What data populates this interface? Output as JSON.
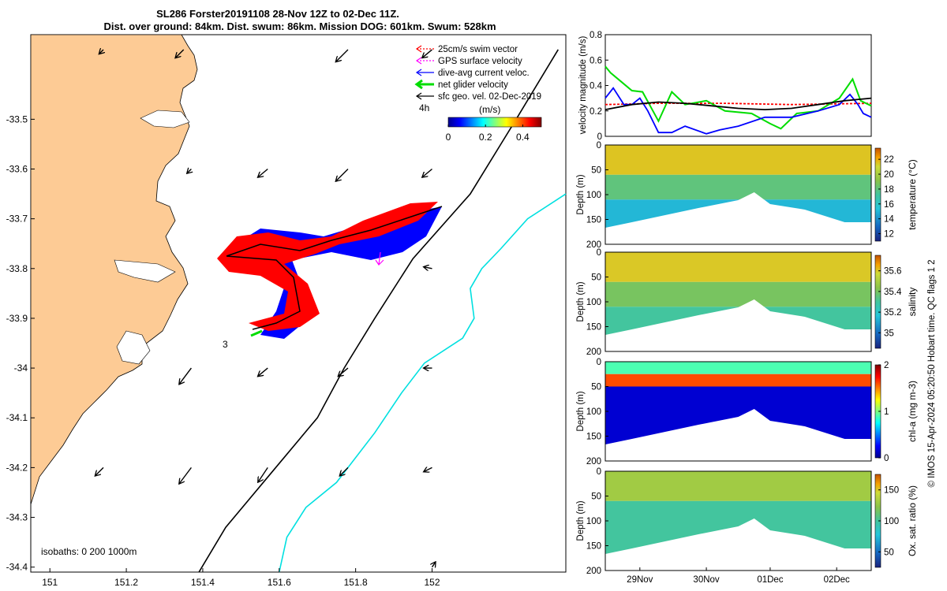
{
  "title": {
    "line1": "SL286 Forster20191108 28-Nov 12Z to 02-Dec 11Z.",
    "line2": "Dist. over ground: 84km. Dist. swum: 86km. Mission DOG: 601km. Swum: 528km"
  },
  "credit": "© IMOS 15-Apr-2024 05:20:50 Hobart time. QC flags 1  2",
  "chart_data": [
    {
      "type": "map",
      "xlim": [
        150.95,
        152.35
      ],
      "ylim": [
        -34.41,
        -33.33
      ],
      "xticks": [
        151,
        151.2,
        151.4,
        151.6,
        151.8,
        152
      ],
      "xtick_labels": [
        "151",
        "151.2",
        "151.4",
        "151.6",
        "151.8",
        "152"
      ],
      "yticks": [
        -33.5,
        -33.6,
        -33.7,
        -33.8,
        -33.9,
        -34,
        -34.1,
        -34.2,
        -34.3,
        -34.4
      ],
      "ytick_labels": [
        "-33.5",
        "-33.6",
        "-33.7",
        "-33.8",
        "-33.9",
        "-34",
        "-34.1",
        "-34.2",
        "-34.3",
        "-34.4"
      ],
      "legend": {
        "placement": "top-right",
        "entries": [
          {
            "label": "25cm/s swim vector",
            "color": "#ff0000",
            "style": "dotted-arrow"
          },
          {
            "label": "GPS surface velocity",
            "color": "#ff00ff",
            "style": "dotted-arrow"
          },
          {
            "label": "dive-avg current veloc.",
            "color": "#0000ff",
            "style": "arrow"
          },
          {
            "label": "net glider velocity",
            "color": "#00dd00",
            "style": "thick-arrow"
          },
          {
            "label": "sfc geo. vel. 02-Dec-2019",
            "color": "#000000",
            "style": "arrow"
          }
        ]
      },
      "colorbar": {
        "label": "(m/s)",
        "ticks": [
          0,
          0.2,
          0.4
        ],
        "tick_labels": [
          "0",
          "0.2",
          "0.4"
        ],
        "range": [
          0,
          0.5
        ]
      },
      "annotations": [
        {
          "text": "4h",
          "lon": 151.84,
          "lat": -33.44
        },
        {
          "text": "3",
          "lon": 151.38,
          "lat": -33.985
        },
        {
          "text": "isobaths: 0   200  1000m",
          "placement": "bottom-left"
        }
      ],
      "isobaths": [
        {
          "depth": 200,
          "color": "#000000",
          "points": [
            [
              152.33,
              -33.36
            ],
            [
              152.22,
              -33.5
            ],
            [
              152.1,
              -33.65
            ],
            [
              151.95,
              -33.78
            ],
            [
              151.85,
              -33.9
            ],
            [
              151.77,
              -34.0
            ],
            [
              151.7,
              -34.1
            ],
            [
              151.58,
              -34.21
            ],
            [
              151.46,
              -34.32
            ],
            [
              151.39,
              -34.41
            ]
          ]
        },
        {
          "depth": 1000,
          "color": "#00e0e0",
          "points": [
            [
              152.35,
              -33.65
            ],
            [
              152.25,
              -33.7
            ],
            [
              152.18,
              -33.76
            ],
            [
              152.13,
              -33.8
            ],
            [
              152.1,
              -33.84
            ],
            [
              152.11,
              -33.9
            ],
            [
              152.08,
              -33.94
            ],
            [
              151.98,
              -33.99
            ],
            [
              151.92,
              -34.05
            ],
            [
              151.85,
              -34.13
            ],
            [
              151.75,
              -34.23
            ],
            [
              151.67,
              -34.28
            ],
            [
              151.62,
              -34.34
            ],
            [
              151.6,
              -34.41
            ]
          ]
        }
      ],
      "glider_track": [
        [
          151.38,
          -33.81
        ],
        [
          151.44,
          -33.805
        ],
        [
          151.52,
          -33.805
        ],
        [
          151.58,
          -33.79
        ],
        [
          151.66,
          -33.775
        ],
        [
          151.74,
          -33.758
        ],
        [
          151.82,
          -33.74
        ],
        [
          151.9,
          -33.72
        ],
        [
          151.55,
          -33.81
        ],
        [
          151.5,
          -33.845
        ],
        [
          151.52,
          -33.88
        ],
        [
          151.55,
          -33.9
        ],
        [
          151.53,
          -33.93
        ],
        [
          151.47,
          -33.945
        ],
        [
          151.43,
          -33.95
        ]
      ],
      "current_vectors": [
        {
          "lon": 151.14,
          "lat": -33.36,
          "u": -0.05,
          "v": -0.05
        },
        {
          "lon": 151.35,
          "lat": -33.36,
          "u": -0.1,
          "v": -0.1
        },
        {
          "lon": 151.78,
          "lat": -33.36,
          "u": -0.15,
          "v": -0.15
        },
        {
          "lon": 152.0,
          "lat": -33.36,
          "u": -0.12,
          "v": -0.1
        },
        {
          "lon": 151.37,
          "lat": -33.6,
          "u": -0.05,
          "v": -0.05
        },
        {
          "lon": 151.57,
          "lat": -33.6,
          "u": -0.12,
          "v": -0.1
        },
        {
          "lon": 151.78,
          "lat": -33.6,
          "u": -0.15,
          "v": -0.15
        },
        {
          "lon": 152.0,
          "lat": -33.6,
          "u": -0.12,
          "v": -0.1
        },
        {
          "lon": 151.57,
          "lat": -33.8,
          "u": -0.06,
          "v": -0.05
        },
        {
          "lon": 152.0,
          "lat": -33.8,
          "u": -0.1,
          "v": 0.02
        },
        {
          "lon": 151.37,
          "lat": -34.0,
          "u": -0.15,
          "v": -0.2
        },
        {
          "lon": 151.57,
          "lat": -34.0,
          "u": -0.12,
          "v": -0.1
        },
        {
          "lon": 151.78,
          "lat": -34.0,
          "u": -0.12,
          "v": -0.1
        },
        {
          "lon": 152.0,
          "lat": -34.0,
          "u": -0.1,
          "v": 0.0
        },
        {
          "lon": 151.14,
          "lat": -34.2,
          "u": -0.1,
          "v": -0.1
        },
        {
          "lon": 151.37,
          "lat": -34.2,
          "u": -0.15,
          "v": -0.2
        },
        {
          "lon": 151.57,
          "lat": -34.2,
          "u": -0.12,
          "v": -0.18
        },
        {
          "lon": 151.78,
          "lat": -34.2,
          "u": -0.1,
          "v": -0.1
        },
        {
          "lon": 152.0,
          "lat": -34.2,
          "u": -0.1,
          "v": -0.05
        },
        {
          "lon": 152.0,
          "lat": -34.4,
          "u": 0.04,
          "v": 0.06
        }
      ]
    },
    {
      "type": "line",
      "ylabel": "velocity magnitude (m/s)",
      "ylim": [
        0,
        0.8
      ],
      "yticks": [
        0,
        0.2,
        0.4,
        0.6,
        0.8
      ],
      "ytick_labels": [
        "0",
        "0.2",
        "0.4",
        "0.6",
        "0.8"
      ],
      "xlim": [
        0,
        1
      ],
      "series": [
        {
          "color": "#ff0000",
          "style": "dashed",
          "points": [
            [
              0,
              0.25
            ],
            [
              0.2,
              0.26
            ],
            [
              0.45,
              0.26
            ],
            [
              0.7,
              0.25
            ],
            [
              1,
              0.26
            ]
          ]
        },
        {
          "color": "#00dd00",
          "style": "solid",
          "points": [
            [
              0,
              0.55
            ],
            [
              0.02,
              0.5
            ],
            [
              0.06,
              0.43
            ],
            [
              0.1,
              0.36
            ],
            [
              0.14,
              0.35
            ],
            [
              0.2,
              0.12
            ],
            [
              0.25,
              0.35
            ],
            [
              0.3,
              0.25
            ],
            [
              0.38,
              0.28
            ],
            [
              0.45,
              0.2
            ],
            [
              0.55,
              0.18
            ],
            [
              0.62,
              0.1
            ],
            [
              0.66,
              0.06
            ],
            [
              0.72,
              0.18
            ],
            [
              0.8,
              0.2
            ],
            [
              0.88,
              0.3
            ],
            [
              0.93,
              0.45
            ],
            [
              0.96,
              0.28
            ],
            [
              1,
              0.24
            ]
          ]
        },
        {
          "color": "#0000ff",
          "style": "solid",
          "points": [
            [
              0,
              0.3
            ],
            [
              0.03,
              0.38
            ],
            [
              0.07,
              0.25
            ],
            [
              0.1,
              0.25
            ],
            [
              0.13,
              0.3
            ],
            [
              0.16,
              0.2
            ],
            [
              0.2,
              0.03
            ],
            [
              0.25,
              0.03
            ],
            [
              0.3,
              0.08
            ],
            [
              0.38,
              0.02
            ],
            [
              0.43,
              0.05
            ],
            [
              0.5,
              0.08
            ],
            [
              0.6,
              0.15
            ],
            [
              0.7,
              0.15
            ],
            [
              0.8,
              0.2
            ],
            [
              0.88,
              0.25
            ],
            [
              0.92,
              0.33
            ],
            [
              0.95,
              0.25
            ],
            [
              0.97,
              0.18
            ],
            [
              1,
              0.15
            ]
          ]
        },
        {
          "color": "#000000",
          "style": "solid",
          "points": [
            [
              0,
              0.21
            ],
            [
              0.1,
              0.25
            ],
            [
              0.2,
              0.27
            ],
            [
              0.3,
              0.26
            ],
            [
              0.4,
              0.24
            ],
            [
              0.5,
              0.22
            ],
            [
              0.6,
              0.21
            ],
            [
              0.7,
              0.22
            ],
            [
              0.8,
              0.25
            ],
            [
              0.9,
              0.28
            ],
            [
              1,
              0.3
            ]
          ]
        }
      ]
    },
    {
      "type": "heatmap",
      "variable": "temperature",
      "ylabel": "Depth (m)",
      "colorbar_label": "temperature (°C)",
      "ylim": [
        0,
        200
      ],
      "yticks": [
        0,
        50,
        100,
        150,
        200
      ],
      "clim": [
        11,
        23.5
      ],
      "colorbar_ticks": [
        12,
        14,
        16,
        18,
        20,
        22
      ],
      "layers": [
        {
          "top": 0,
          "bottom": 60,
          "value": 21.5
        },
        {
          "top": 60,
          "bottom": 110,
          "value": 18
        },
        {
          "top": 110,
          "bottom": 200,
          "value": 15
        }
      ]
    },
    {
      "type": "heatmap",
      "variable": "salinity",
      "ylabel": "Depth (m)",
      "colorbar_label": "salinity",
      "ylim": [
        0,
        200
      ],
      "yticks": [
        0,
        50,
        100,
        150,
        200
      ],
      "clim": [
        34.85,
        35.75
      ],
      "colorbar_ticks": [
        35,
        35.2,
        35.4,
        35.6
      ],
      "layers": [
        {
          "top": 0,
          "bottom": 60,
          "value": 35.6
        },
        {
          "top": 60,
          "bottom": 110,
          "value": 35.4
        },
        {
          "top": 110,
          "bottom": 200,
          "value": 35.3
        }
      ]
    },
    {
      "type": "heatmap",
      "variable": "chl-a",
      "ylabel": "Depth (m)",
      "colorbar_label": "chl-a (mg m-3)",
      "ylim": [
        0,
        200
      ],
      "yticks": [
        0,
        50,
        100,
        150,
        200
      ],
      "clim": [
        0,
        2
      ],
      "colorbar_ticks": [
        0,
        1,
        2
      ],
      "layers": [
        {
          "top": 0,
          "bottom": 25,
          "value": 0.9
        },
        {
          "top": 25,
          "bottom": 50,
          "value": 1.6
        },
        {
          "top": 50,
          "bottom": 200,
          "value": 0.15
        }
      ]
    },
    {
      "type": "heatmap",
      "variable": "oxygen saturation",
      "ylabel": "Depth (m)",
      "colorbar_label": "Ox. sat. ratio (%)",
      "ylim": [
        0,
        200
      ],
      "yticks": [
        0,
        50,
        100,
        150,
        200
      ],
      "clim": [
        25,
        175
      ],
      "colorbar_ticks": [
        50,
        100,
        150
      ],
      "xtick_labels": [
        "29Nov",
        "30Nov",
        "01Dec",
        "02Dec"
      ],
      "layers": [
        {
          "top": 0,
          "bottom": 60,
          "value": 130
        },
        {
          "top": 60,
          "bottom": 200,
          "value": 100
        }
      ]
    }
  ]
}
